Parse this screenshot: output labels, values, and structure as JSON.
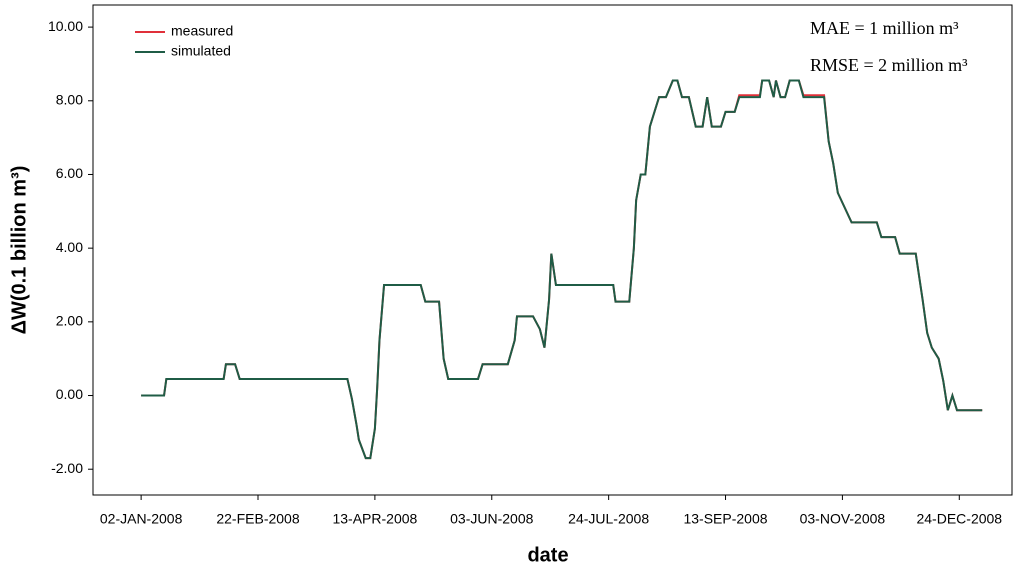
{
  "chart_data": {
    "type": "line",
    "x_label": "date",
    "y_label": "ΔW(0.1 billion m³)",
    "annotations": [
      "MAE = 1 million m³",
      "RMSE = 2 million m³"
    ],
    "xlim": [
      "2007-12-12",
      "2009-01-16"
    ],
    "xticks": [
      {
        "value": "2008-01-02",
        "label": "02-JAN-2008"
      },
      {
        "value": "2008-02-22",
        "label": "22-FEB-2008"
      },
      {
        "value": "2008-04-13",
        "label": "13-APR-2008"
      },
      {
        "value": "2008-06-03",
        "label": "03-JUN-2008"
      },
      {
        "value": "2008-07-24",
        "label": "24-JUL-2008"
      },
      {
        "value": "2008-09-13",
        "label": "13-SEP-2008"
      },
      {
        "value": "2008-11-03",
        "label": "03-NOV-2008"
      },
      {
        "value": "2008-12-24",
        "label": "24-DEC-2008"
      }
    ],
    "ylim": [
      -2.7,
      10.6
    ],
    "yticks": [
      {
        "value": -2,
        "label": "-2.00"
      },
      {
        "value": 0,
        "label": "0.00"
      },
      {
        "value": 2,
        "label": "2.00"
      },
      {
        "value": 4,
        "label": "4.00"
      },
      {
        "value": 6,
        "label": "6.00"
      },
      {
        "value": 8,
        "label": "8.00"
      },
      {
        "value": 10,
        "label": "10.00"
      }
    ],
    "legend": "upper left",
    "x": [
      "2008-01-02",
      "2008-01-12",
      "2008-01-13",
      "2008-02-07",
      "2008-02-08",
      "2008-02-12",
      "2008-02-14",
      "2008-04-01",
      "2008-04-03",
      "2008-04-05",
      "2008-04-06",
      "2008-04-09",
      "2008-04-11",
      "2008-04-13",
      "2008-04-14",
      "2008-04-15",
      "2008-04-17",
      "2008-05-03",
      "2008-05-05",
      "2008-05-11",
      "2008-05-13",
      "2008-05-15",
      "2008-05-28",
      "2008-05-30",
      "2008-06-10",
      "2008-06-13",
      "2008-06-14",
      "2008-06-21",
      "2008-06-24",
      "2008-06-26",
      "2008-06-28",
      "2008-06-29",
      "2008-07-01",
      "2008-07-26",
      "2008-07-27",
      "2008-08-02",
      "2008-08-04",
      "2008-08-05",
      "2008-08-07",
      "2008-08-09",
      "2008-08-11",
      "2008-08-13",
      "2008-08-15",
      "2008-08-18",
      "2008-08-21",
      "2008-08-23",
      "2008-08-25",
      "2008-08-28",
      "2008-08-31",
      "2008-09-03",
      "2008-09-05",
      "2008-09-07",
      "2008-09-11",
      "2008-09-13",
      "2008-09-17",
      "2008-09-19",
      "2008-09-28",
      "2008-09-29",
      "2008-10-02",
      "2008-10-04",
      "2008-10-05",
      "2008-10-07",
      "2008-10-09",
      "2008-10-11",
      "2008-10-15",
      "2008-10-17",
      "2008-10-26",
      "2008-10-28",
      "2008-10-30",
      "2008-11-01",
      "2008-11-04",
      "2008-11-07",
      "2008-11-18",
      "2008-11-20",
      "2008-11-26",
      "2008-11-28",
      "2008-12-05",
      "2008-12-08",
      "2008-12-10",
      "2008-12-12",
      "2008-12-15",
      "2008-12-17",
      "2008-12-19",
      "2008-12-21",
      "2008-12-23",
      "2008-12-27",
      "2009-01-03"
    ],
    "series": [
      {
        "name": "measured",
        "color": "#e0303a",
        "values": [
          0,
          0,
          0.45,
          0.45,
          0.85,
          0.85,
          0.45,
          0.45,
          -0.1,
          -0.8,
          -1.2,
          -1.7,
          -1.7,
          -0.9,
          0.2,
          1.5,
          3.0,
          3.0,
          2.55,
          2.55,
          1.0,
          0.45,
          0.45,
          0.85,
          0.85,
          1.5,
          2.15,
          2.15,
          1.8,
          1.3,
          2.6,
          3.85,
          3.0,
          3.0,
          2.55,
          2.55,
          4.0,
          5.3,
          6.0,
          6.0,
          7.3,
          7.7,
          8.1,
          8.1,
          8.55,
          8.55,
          8.1,
          8.1,
          7.3,
          7.3,
          8.1,
          7.3,
          7.3,
          7.7,
          7.7,
          8.15,
          8.15,
          8.55,
          8.55,
          8.1,
          8.55,
          8.1,
          8.1,
          8.55,
          8.55,
          8.15,
          8.15,
          6.9,
          6.3,
          5.5,
          5.1,
          4.7,
          4.7,
          4.3,
          4.3,
          3.85,
          3.85,
          2.6,
          1.7,
          1.3,
          1.0,
          0.4,
          -0.4,
          0.0,
          -0.4,
          -0.4,
          -0.4
        ]
      },
      {
        "name": "simulated",
        "color": "#1f5c46",
        "values": [
          0,
          0,
          0.45,
          0.45,
          0.85,
          0.85,
          0.45,
          0.45,
          -0.1,
          -0.8,
          -1.2,
          -1.7,
          -1.7,
          -0.9,
          0.2,
          1.5,
          3.0,
          3.0,
          2.55,
          2.55,
          1.0,
          0.45,
          0.45,
          0.85,
          0.85,
          1.5,
          2.15,
          2.15,
          1.8,
          1.3,
          2.6,
          3.85,
          3.0,
          3.0,
          2.55,
          2.55,
          4.0,
          5.3,
          6.0,
          6.0,
          7.3,
          7.7,
          8.1,
          8.1,
          8.55,
          8.55,
          8.1,
          8.1,
          7.3,
          7.3,
          8.1,
          7.3,
          7.3,
          7.7,
          7.7,
          8.1,
          8.1,
          8.55,
          8.55,
          8.1,
          8.55,
          8.1,
          8.1,
          8.55,
          8.55,
          8.1,
          8.1,
          6.9,
          6.3,
          5.5,
          5.1,
          4.7,
          4.7,
          4.3,
          4.3,
          3.85,
          3.85,
          2.6,
          1.7,
          1.3,
          1.0,
          0.4,
          -0.4,
          0.0,
          -0.4,
          -0.4,
          -0.4
        ]
      }
    ]
  }
}
